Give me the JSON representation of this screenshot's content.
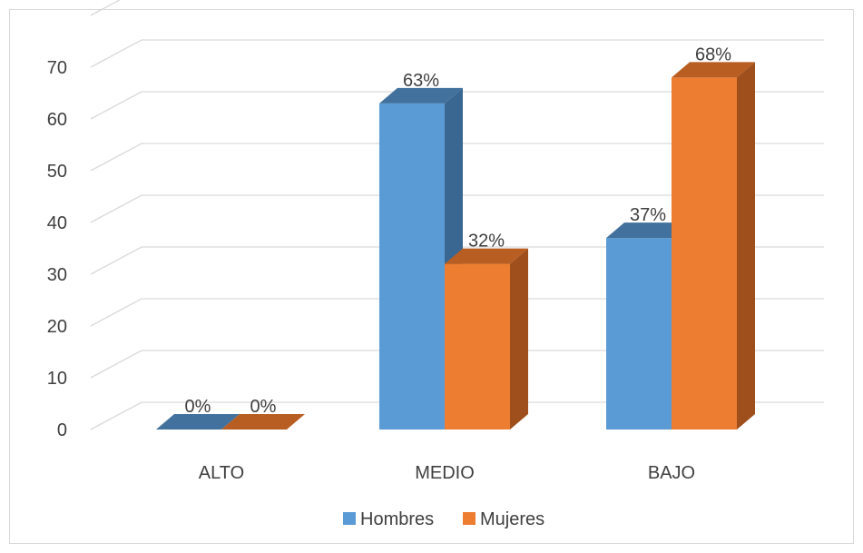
{
  "chart_data": {
    "type": "bar",
    "title": "",
    "xlabel": "",
    "ylabel": "",
    "categories": [
      "ALTO",
      "MEDIO",
      "BAJO"
    ],
    "series": [
      {
        "name": "Hombres",
        "values": [
          0,
          63,
          37
        ],
        "labels": [
          "0%",
          "63%",
          "37%"
        ],
        "color": "#5b9bd5",
        "side_color": "#3a6791",
        "top_color": "#41719c"
      },
      {
        "name": "Mujeres",
        "values": [
          0,
          32,
          68
        ],
        "labels": [
          "0%",
          "32%",
          "68%"
        ],
        "color": "#ed7d31",
        "side_color": "#9e4f1c",
        "top_color": "#b85e22"
      }
    ],
    "yticks": [
      0,
      10,
      20,
      30,
      40,
      50,
      60,
      70
    ],
    "ylim": [
      0,
      70
    ],
    "grid": true,
    "legend": "bottom",
    "style": "3d-clustered-column"
  }
}
